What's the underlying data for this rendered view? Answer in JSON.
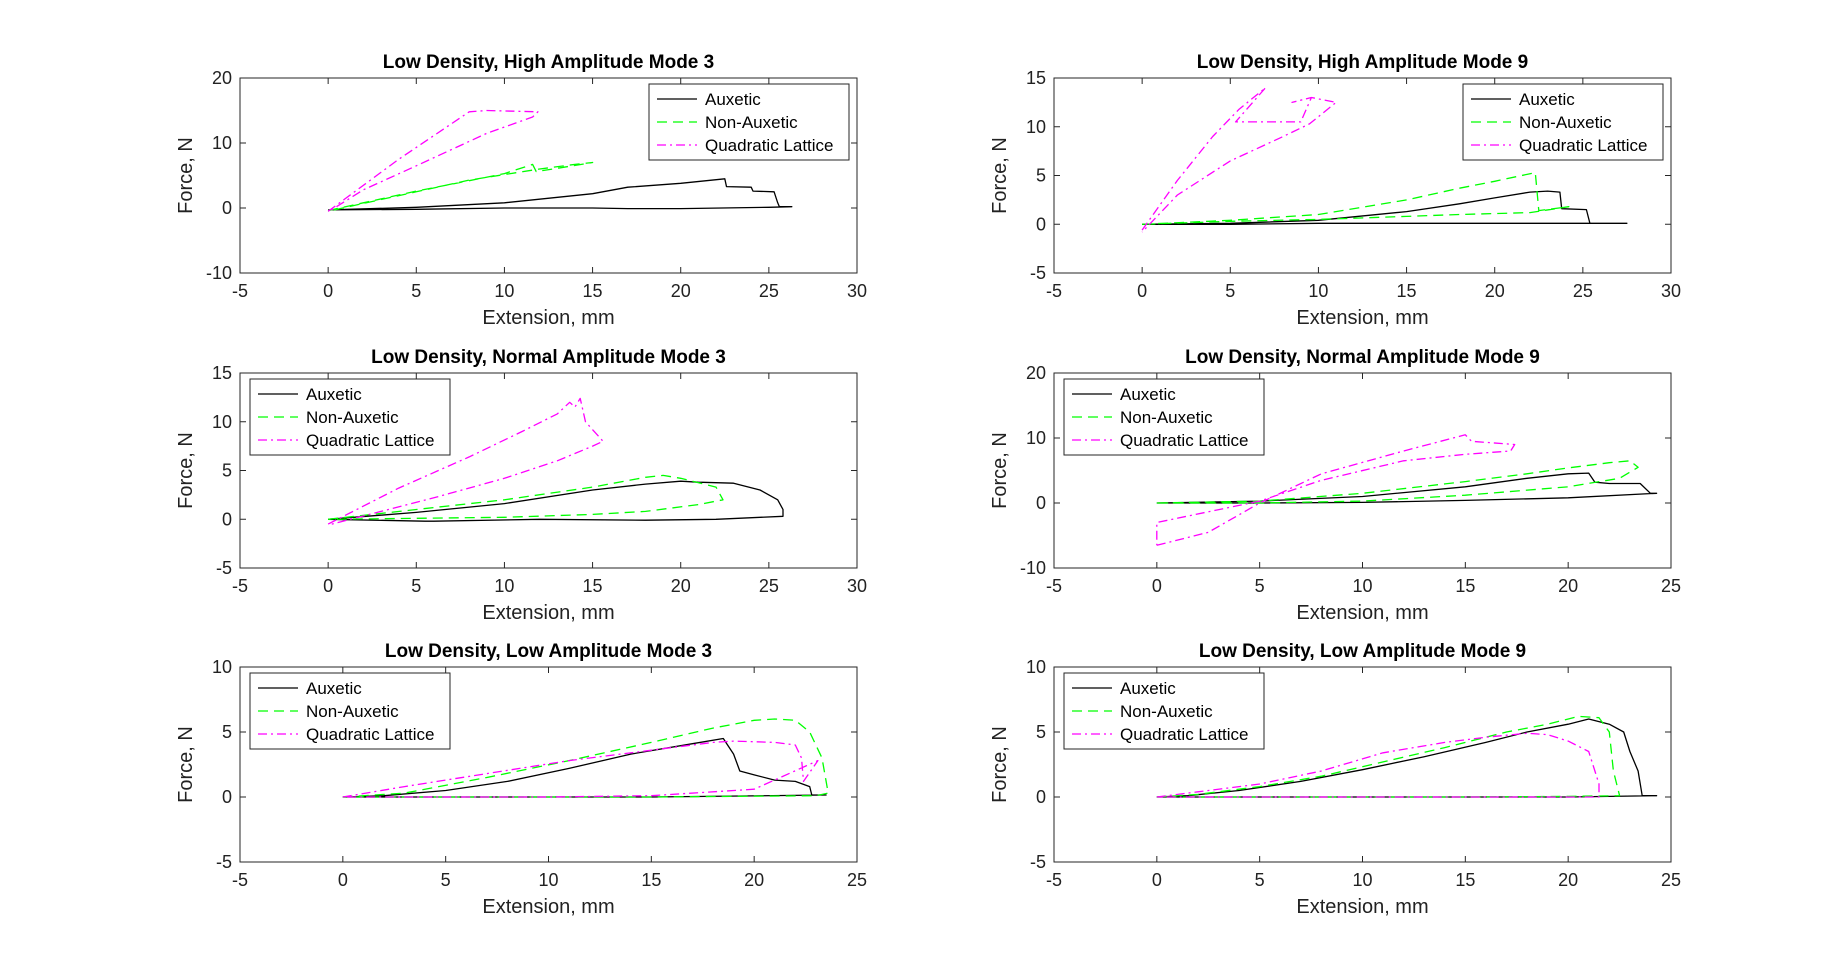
{
  "figure": {
    "background": "#ffffff"
  },
  "series_styles": {
    "Auxetic": {
      "color": "#000000",
      "dash": ""
    },
    "Non-Auxetic": {
      "color": "#00ff00",
      "dash": "10 6"
    },
    "Quadratic Lattice": {
      "color": "#ff00ff",
      "dash": "9 4 2 4"
    }
  },
  "chart_data": [
    {
      "type": "line",
      "title": "Low Density, High Amplitude Mode 3",
      "xlabel": "Extension, mm",
      "ylabel": "Force, N",
      "xlim": [
        -5,
        30
      ],
      "ylim": [
        -10,
        20
      ],
      "xticks": [
        "-5",
        "0",
        "5",
        "10",
        "15",
        "20",
        "25",
        "30"
      ],
      "yticks": [
        "-10",
        "0",
        "10",
        "20"
      ],
      "legend": {
        "location": "top-right",
        "entries": [
          "Auxetic",
          "Non-Auxetic",
          "Quadratic Lattice"
        ]
      },
      "series": [
        {
          "name": "Auxetic",
          "x": [
            0,
            5,
            10,
            15,
            17,
            20,
            22.5,
            22.6,
            24,
            24.1,
            25.3,
            25.5,
            25.6,
            26.3,
            25,
            20,
            17,
            15,
            10,
            5,
            0
          ],
          "y": [
            -0.3,
            0.1,
            0.8,
            2.2,
            3.2,
            3.8,
            4.5,
            3.3,
            3.2,
            2.6,
            2.5,
            0.8,
            0.2,
            0.2,
            0.1,
            -0.1,
            -0.1,
            0.0,
            0.0,
            -0.2,
            -0.3
          ]
        },
        {
          "name": "Non-Auxetic",
          "x": [
            0,
            5,
            8,
            10,
            11.6,
            11.8,
            13,
            15,
            14,
            12,
            8,
            5,
            2,
            0
          ],
          "y": [
            -0.4,
            2.6,
            4.2,
            5.3,
            6.7,
            5.6,
            6.1,
            7.0,
            6.7,
            6.0,
            4.3,
            2.5,
            0.7,
            -0.5
          ]
        },
        {
          "name": "Quadratic Lattice",
          "x": [
            0,
            4,
            8,
            9,
            11.9,
            11.6,
            9,
            5,
            2,
            0
          ],
          "y": [
            -0.5,
            7.5,
            14.8,
            15.0,
            14.8,
            14.0,
            11.5,
            6.5,
            2.8,
            -0.6
          ]
        }
      ]
    },
    {
      "type": "line",
      "title": "Low Density, High Amplitude Mode 9",
      "xlabel": "Extension, mm",
      "ylabel": "Force, N",
      "xlim": [
        -5,
        30
      ],
      "ylim": [
        -5,
        15
      ],
      "xticks": [
        "-5",
        "0",
        "5",
        "10",
        "15",
        "20",
        "25",
        "30"
      ],
      "yticks": [
        "-5",
        "0",
        "5",
        "10",
        "15"
      ],
      "legend": {
        "location": "top-right",
        "entries": [
          "Auxetic",
          "Non-Auxetic",
          "Quadratic Lattice"
        ]
      },
      "series": [
        {
          "name": "Auxetic",
          "x": [
            0,
            5,
            10,
            15,
            18,
            20,
            22,
            23,
            23.7,
            23.8,
            25.2,
            25.4,
            27.5,
            25,
            20,
            15,
            10,
            5,
            0
          ],
          "y": [
            0.0,
            0.1,
            0.4,
            1.3,
            2.1,
            2.7,
            3.3,
            3.4,
            3.3,
            1.6,
            1.5,
            0.1,
            0.1,
            0.1,
            0.1,
            0.1,
            0.1,
            0.0,
            0.0
          ]
        },
        {
          "name": "Non-Auxetic",
          "x": [
            0,
            5,
            10,
            15,
            18,
            20,
            22.3,
            22.5,
            24.2,
            22,
            18,
            15,
            10,
            5,
            0
          ],
          "y": [
            0.0,
            0.4,
            1.0,
            2.5,
            3.7,
            4.4,
            5.3,
            1.4,
            1.8,
            1.2,
            1.0,
            0.8,
            0.5,
            0.3,
            0.0
          ]
        },
        {
          "name": "Quadratic Lattice",
          "x": [
            0,
            2,
            4,
            5.5,
            7,
            5.3,
            9,
            9.6,
            8.5,
            9.6,
            11,
            9.5,
            8,
            5,
            2,
            0
          ],
          "y": [
            -0.6,
            4.5,
            9.0,
            11.8,
            14.0,
            10.5,
            10.5,
            13.0,
            12.5,
            13.0,
            12.5,
            10.3,
            9.0,
            6.5,
            3.0,
            -0.8
          ]
        }
      ]
    },
    {
      "type": "line",
      "title": "Low Density, Normal Amplitude Mode 3",
      "xlabel": "Extension, mm",
      "ylabel": "Force, N",
      "xlim": [
        -5,
        30
      ],
      "ylim": [
        -5,
        15
      ],
      "xticks": [
        "-5",
        "0",
        "5",
        "10",
        "15",
        "20",
        "25",
        "30"
      ],
      "yticks": [
        "-5",
        "0",
        "5",
        "10",
        "15"
      ],
      "legend": {
        "location": "top-left",
        "entries": [
          "Auxetic",
          "Non-Auxetic",
          "Quadratic Lattice"
        ]
      },
      "series": [
        {
          "name": "Auxetic",
          "x": [
            0,
            5,
            10,
            15,
            18,
            20,
            21,
            23,
            24.5,
            25.5,
            25.8,
            25.8,
            22,
            18,
            12,
            6,
            5.5,
            0
          ],
          "y": [
            0.0,
            0.7,
            1.6,
            3.0,
            3.6,
            3.9,
            3.8,
            3.7,
            3.0,
            2.0,
            1.0,
            0.3,
            0.0,
            -0.1,
            0.0,
            -0.2,
            -0.2,
            0.0
          ]
        },
        {
          "name": "Non-Auxetic",
          "x": [
            0,
            5,
            10,
            15,
            18,
            19,
            20,
            22,
            22.4,
            21,
            18,
            15,
            10,
            5,
            0
          ],
          "y": [
            0.0,
            1.0,
            2.0,
            3.3,
            4.3,
            4.5,
            4.2,
            3.3,
            2.0,
            1.5,
            0.8,
            0.5,
            0.2,
            0.1,
            0.0
          ]
        },
        {
          "name": "Quadratic Lattice",
          "x": [
            0,
            4,
            8,
            11,
            13,
            13.7,
            14,
            14.3,
            14.6,
            15.6,
            15,
            13,
            10,
            6,
            3,
            0
          ],
          "y": [
            -0.5,
            3.2,
            6.4,
            9.0,
            10.8,
            12.0,
            11.5,
            12.4,
            10.0,
            8.0,
            7.5,
            6.0,
            4.2,
            2.2,
            0.8,
            -0.6
          ]
        }
      ]
    },
    {
      "type": "line",
      "title": "Low Density, Normal Amplitude Mode 9",
      "xlabel": "Extension, mm",
      "ylabel": "Force, N",
      "xlim": [
        -5,
        25
      ],
      "ylim": [
        -10,
        20
      ],
      "xticks": [
        "-5",
        "0",
        "5",
        "10",
        "15",
        "20",
        "25"
      ],
      "yticks": [
        "-10",
        "0",
        "10",
        "20"
      ],
      "legend": {
        "location": "top-left",
        "entries": [
          "Auxetic",
          "Non-Auxetic",
          "Quadratic Lattice"
        ]
      },
      "series": [
        {
          "name": "Auxetic",
          "x": [
            0,
            5,
            10,
            15,
            18,
            20,
            21,
            21.3,
            22,
            23.5,
            24,
            24.3,
            20,
            15,
            10,
            5,
            0
          ],
          "y": [
            0.0,
            0.3,
            1.0,
            2.5,
            3.8,
            4.5,
            4.6,
            3.2,
            3.0,
            3.0,
            1.5,
            1.5,
            0.8,
            0.4,
            0.1,
            0.0,
            0.0
          ]
        },
        {
          "name": "Non-Auxetic",
          "x": [
            0,
            5,
            10,
            15,
            18,
            20,
            22,
            23,
            23.4,
            22.5,
            20,
            15,
            10,
            5,
            0
          ],
          "y": [
            0.0,
            0.3,
            1.5,
            3.3,
            4.5,
            5.4,
            6.2,
            6.5,
            5.5,
            3.8,
            2.5,
            1.2,
            0.3,
            0.0,
            0.0
          ]
        },
        {
          "name": "Quadratic Lattice",
          "x": [
            0,
            2.5,
            5,
            8,
            12,
            15,
            15.3,
            17.4,
            17.2,
            15,
            12,
            8,
            5,
            0,
            0
          ],
          "y": [
            -6.5,
            -4.5,
            0.0,
            4.5,
            8.0,
            10.5,
            9.5,
            9.0,
            8.0,
            7.5,
            6.5,
            3.5,
            0.3,
            -3.0,
            -6.5
          ]
        }
      ]
    },
    {
      "type": "line",
      "title": "Low Density, Low Amplitude Mode 3",
      "xlabel": "Extension, mm",
      "ylabel": "Force, N",
      "xlim": [
        -5,
        25
      ],
      "ylim": [
        -5,
        10
      ],
      "xticks": [
        "-5",
        "0",
        "5",
        "10",
        "15",
        "20",
        "25"
      ],
      "yticks": [
        "-5",
        "0",
        "5",
        "10"
      ],
      "legend": {
        "location": "top-left",
        "entries": [
          "Auxetic",
          "Non-Auxetic",
          "Quadratic Lattice"
        ]
      },
      "series": [
        {
          "name": "Auxetic",
          "x": [
            0,
            2,
            5,
            8,
            11,
            14,
            17,
            18.5,
            19,
            19.3,
            20,
            21,
            22,
            22.7,
            22.8,
            23.5,
            15,
            10,
            5,
            0
          ],
          "y": [
            0.0,
            0.1,
            0.5,
            1.2,
            2.2,
            3.3,
            4.1,
            4.5,
            3.3,
            2.0,
            1.7,
            1.3,
            1.2,
            0.8,
            0.15,
            0.15,
            0.0,
            0.0,
            0.0,
            0.0
          ]
        },
        {
          "name": "Non-Auxetic",
          "x": [
            0,
            3,
            7,
            11,
            15,
            18,
            20,
            21,
            22,
            22.7,
            23.3,
            23.6,
            23,
            15,
            10,
            5,
            0
          ],
          "y": [
            0.0,
            0.3,
            1.5,
            2.8,
            4.2,
            5.3,
            5.9,
            6.0,
            5.9,
            5.0,
            3.0,
            0.3,
            0.1,
            0.0,
            0.0,
            0.0,
            0.0
          ]
        },
        {
          "name": "Quadratic Lattice",
          "x": [
            0,
            3,
            7,
            11,
            15,
            17,
            18,
            19,
            21,
            22,
            22.3,
            22.4,
            23.1,
            20,
            15,
            10,
            5,
            0
          ],
          "y": [
            0.0,
            0.8,
            1.8,
            2.8,
            3.6,
            4.0,
            4.2,
            4.3,
            4.2,
            4.0,
            3.0,
            1.2,
            2.8,
            0.6,
            0.1,
            0.0,
            0.0,
            0.0
          ]
        }
      ]
    },
    {
      "type": "line",
      "title": "Low Density, Low Amplitude Mode 9",
      "xlabel": "Extension, mm",
      "ylabel": "Force, N",
      "xlim": [
        -5,
        25
      ],
      "ylim": [
        -5,
        10
      ],
      "xticks": [
        "-5",
        "0",
        "5",
        "10",
        "15",
        "20",
        "25"
      ],
      "yticks": [
        "-5",
        "0",
        "5",
        "10"
      ],
      "legend": {
        "location": "top-left",
        "entries": [
          "Auxetic",
          "Non-Auxetic",
          "Quadratic Lattice"
        ]
      },
      "series": [
        {
          "name": "Auxetic",
          "x": [
            0,
            1.5,
            4,
            7,
            10,
            13,
            16,
            18,
            20,
            21,
            22,
            22.7,
            23,
            23.4,
            23.6,
            24.3,
            20,
            15,
            10,
            5,
            0
          ],
          "y": [
            0.0,
            0.1,
            0.5,
            1.2,
            2.1,
            3.1,
            4.2,
            5.0,
            5.6,
            6.0,
            5.6,
            5.0,
            3.5,
            2.0,
            0.1,
            0.1,
            0.0,
            0.0,
            0.0,
            0.0,
            0.0
          ]
        },
        {
          "name": "Non-Auxetic",
          "x": [
            0,
            2,
            5,
            8,
            11,
            14,
            17,
            19,
            20.5,
            21.5,
            22,
            22.2,
            22.5,
            20,
            15,
            10,
            5,
            0
          ],
          "y": [
            0.0,
            0.2,
            0.8,
            1.6,
            2.7,
            3.8,
            5.0,
            5.6,
            6.2,
            6.1,
            5.0,
            2.0,
            0.1,
            0.05,
            0.0,
            0.0,
            0.0,
            0.0
          ]
        },
        {
          "name": "Quadratic Lattice",
          "x": [
            0,
            2,
            5,
            8,
            11,
            14,
            16,
            18,
            19,
            20,
            21,
            21.3,
            21.5,
            21.5,
            20,
            15,
            10,
            5,
            0
          ],
          "y": [
            0.0,
            0.4,
            1.0,
            2.0,
            3.4,
            4.2,
            4.6,
            4.9,
            4.8,
            4.3,
            3.5,
            2.0,
            1.0,
            0.0,
            0.0,
            0.0,
            0.0,
            0.0,
            0.0
          ]
        }
      ]
    }
  ]
}
